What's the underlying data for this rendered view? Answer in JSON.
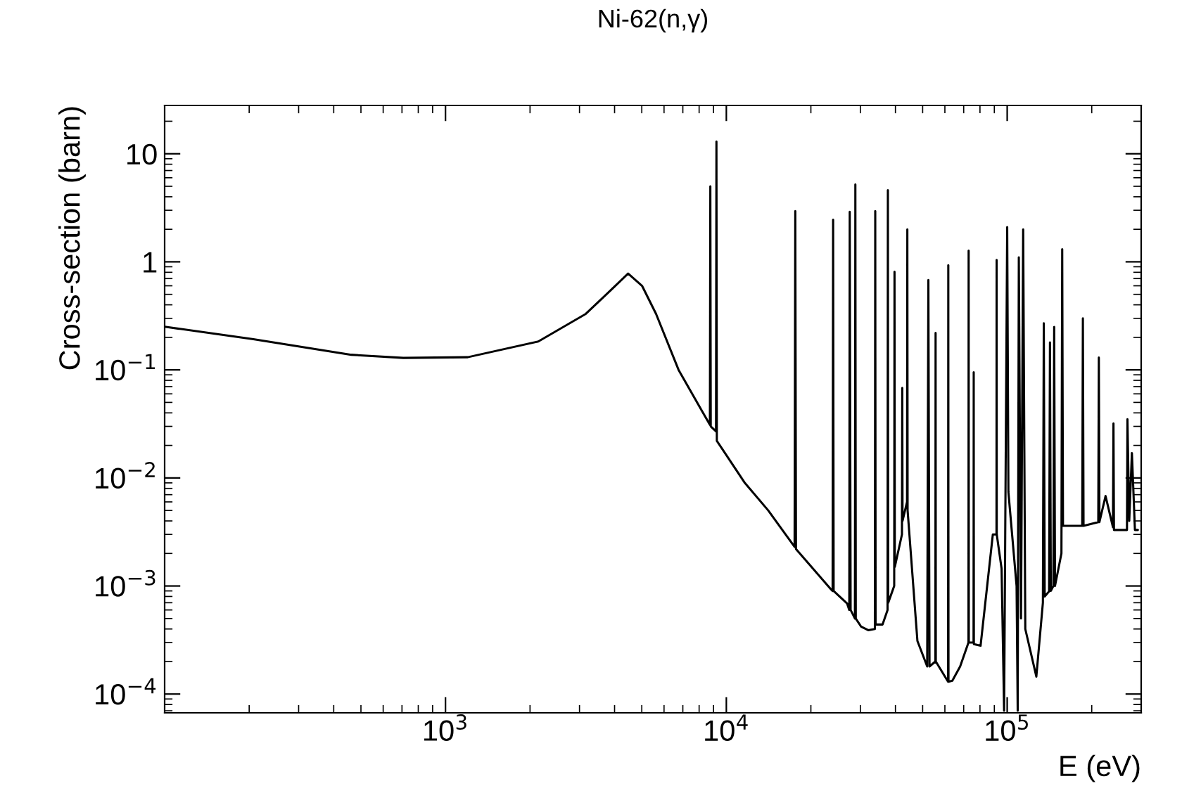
{
  "chart_data": {
    "type": "line",
    "title": "Ni-62(n,γ)",
    "xlabel": "E (eV)",
    "ylabel": "Cross-section (barn)",
    "log": "xy",
    "xlim": [
      100,
      300000
    ],
    "ylim": [
      6.7e-05,
      28
    ],
    "xticks": [
      {
        "value": 1000,
        "label": "10$^{3}$"
      },
      {
        "value": 10000,
        "label": "10$^{4}$"
      },
      {
        "value": 100000,
        "label": "10$^{5}$"
      }
    ],
    "yticks": [
      {
        "value": 0.0001,
        "label": "10$^{−4}$"
      },
      {
        "value": 0.001,
        "label": "10$^{−3}$"
      },
      {
        "value": 0.01,
        "label": "10$^{−2}$"
      },
      {
        "value": 0.1,
        "label": "10$^{−1}$"
      },
      1,
      10
    ],
    "grid": false,
    "legend": false,
    "marker": "none",
    "line_style": "solid",
    "series": [
      {
        "color": "#000000",
        "x": [
          100,
          207,
          462,
          708,
          1200,
          2140,
          3160,
          3800,
          4470,
          5010,
          5620,
          6760,
          8220,
          8740,
          8770,
          8800,
          9190,
          9220,
          9250,
          9550,
          11600,
          14100,
          17500,
          17600,
          17700,
          23600,
          23900,
          24000,
          24100,
          26900,
          27400,
          27500,
          27700,
          28700,
          28800,
          28900,
          30200,
          32000,
          33800,
          33900,
          34000,
          36000,
          37500,
          37600,
          37700,
          39600,
          39700,
          39800,
          42200,
          42300,
          42400,
          44000,
          44100,
          44200,
          47900,
          51900,
          52400,
          52900,
          55500,
          55600,
          55700,
          61600,
          61700,
          61800,
          63800,
          68000,
          72800,
          72900,
          73000,
          75900,
          76000,
          76100,
          80400,
          88900,
          91600,
          91700,
          91800,
          95500,
          97500,
          100000,
          101000,
          108000,
          109000,
          110000,
          112000,
          114000,
          116000,
          127000,
          134000,
          135000,
          136000,
          141000,
          142000,
          143000,
          146000,
          147000,
          148000,
          156000,
          157000,
          158000,
          185000,
          186000,
          187000,
          211000,
          212000,
          213000,
          224000,
          238000,
          239000,
          240000,
          267000,
          268000,
          272000,
          278000,
          285000,
          292000
        ],
        "values": [
          0.251,
          0.192,
          0.138,
          0.129,
          0.131,
          0.183,
          0.33,
          0.52,
          0.78,
          0.6,
          0.33,
          0.1,
          0.041,
          0.031,
          5.0,
          0.03,
          0.027,
          13,
          0.022,
          0.0195,
          0.0091,
          0.005,
          0.0023,
          2.95,
          0.0022,
          0.00093,
          0.0009,
          2.45,
          0.0009,
          0.00069,
          0.0006,
          2.9,
          0.0006,
          0.0005,
          5.2,
          0.0005,
          0.00042,
          0.00039,
          0.0004,
          2.95,
          0.00044,
          0.00044,
          0.0006,
          4.6,
          0.0007,
          0.001,
          0.81,
          0.0015,
          0.003,
          0.068,
          0.004,
          0.006,
          2.0,
          0.005,
          0.00031,
          0.00018,
          0.68,
          0.00018,
          0.0002,
          0.22,
          0.0002,
          0.00013,
          0.93,
          0.00013,
          0.000133,
          0.00018,
          0.0003,
          1.27,
          0.0003,
          0.0003,
          0.095,
          0.00029,
          0.00028,
          0.003,
          0.003,
          1.04,
          0.003,
          0.00145,
          7e-05,
          2.1,
          0.0074,
          0.001,
          7e-05,
          1.1,
          0.0005,
          2.0,
          0.0004,
          0.000145,
          0.0007,
          0.27,
          0.0008,
          0.00089,
          0.18,
          0.0009,
          0.001,
          0.25,
          0.001,
          0.002,
          1.31,
          0.0036,
          0.0036,
          0.3,
          0.0036,
          0.0039,
          0.13,
          0.0039,
          0.0068,
          0.0035,
          0.032,
          0.0033,
          0.0033,
          0.035,
          0.004,
          0.017,
          0.0033,
          0.0033
        ]
      }
    ]
  }
}
